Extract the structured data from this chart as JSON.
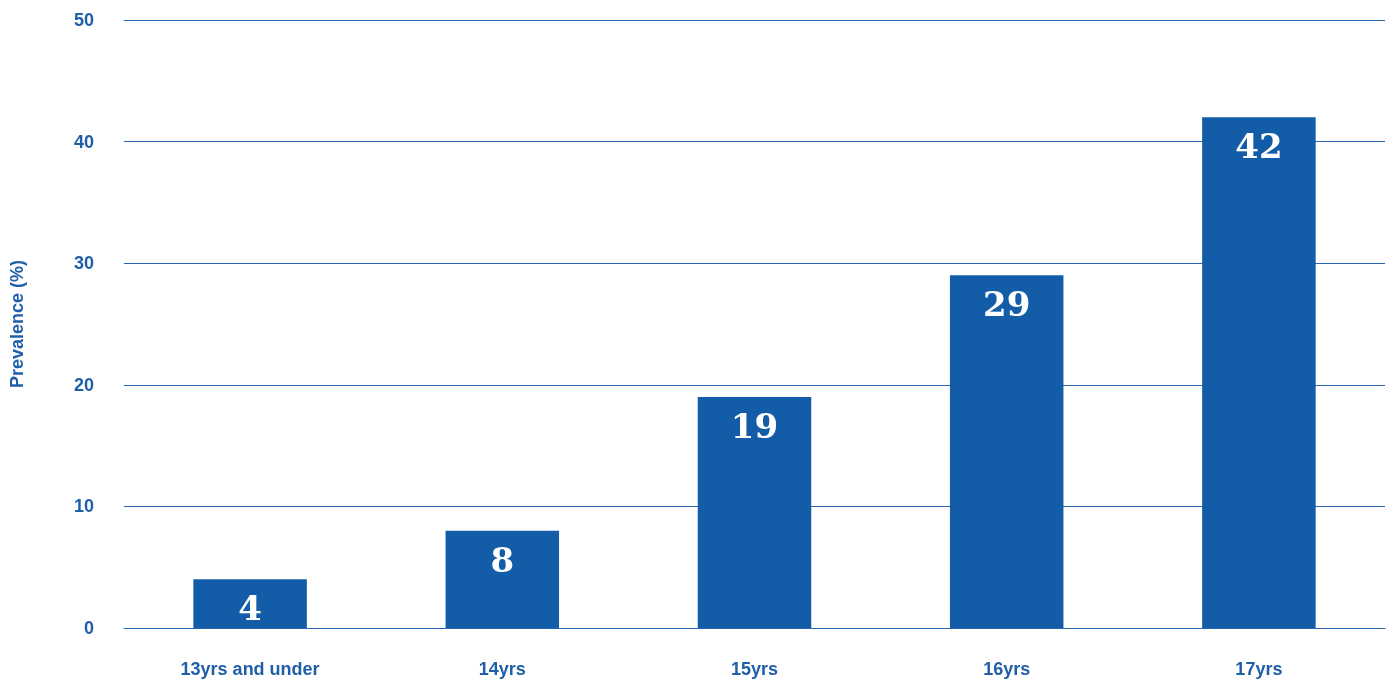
{
  "chart_data": {
    "type": "bar",
    "ylabel": "Prevalence (%)",
    "categories": [
      "13yrs and under",
      "14yrs",
      "15yrs",
      "16yrs",
      "17yrs"
    ],
    "values": [
      4,
      8,
      19,
      29,
      42
    ],
    "color": "#125ca8",
    "ylim": [
      0,
      50
    ],
    "yticks": [
      0,
      10,
      20,
      30,
      40,
      50
    ],
    "grid": "y",
    "data_labels": true
  }
}
